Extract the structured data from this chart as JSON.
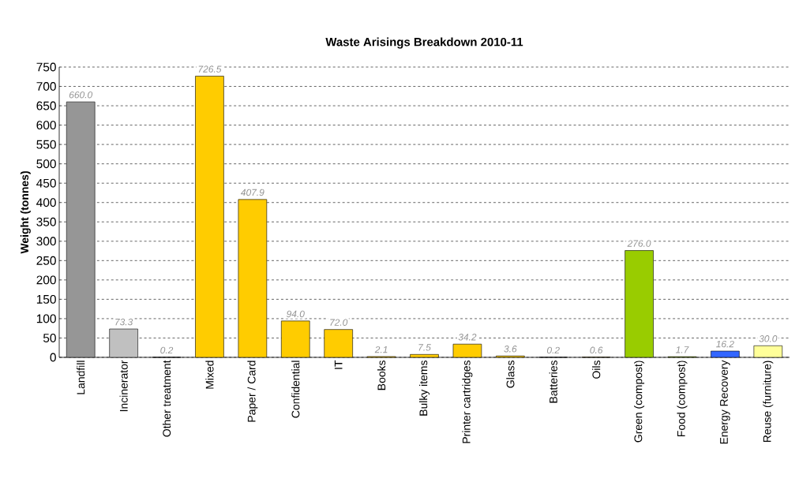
{
  "chart_data": {
    "type": "bar",
    "title": "Waste Arisings Breakdown 2010-11",
    "ylabel": "Weight (tonnes)",
    "categories": [
      "Landfill",
      "Incinerator",
      "Other treatment",
      "Mixed",
      "Paper / Card",
      "Confidential",
      "IT",
      "Books",
      "Bulky items",
      "Printer cartridges",
      "Glass",
      "Batteries",
      "Oils",
      "Green (compost)",
      "Food (compost)",
      "Energy Recovery",
      "Reuse (furniture)"
    ],
    "values": [
      660.0,
      73.3,
      0.2,
      726.5,
      407.9,
      94.0,
      72.0,
      2.1,
      7.5,
      34.2,
      3.6,
      0.2,
      0.6,
      276.0,
      1.7,
      16.2,
      30.0
    ],
    "value_labels": [
      "660.0",
      "73.3",
      "0.2",
      "726.5",
      "407.9",
      "94.0",
      "72.0",
      "2.1",
      "7.5",
      "34.2",
      "3.6",
      "0.2",
      "0.6",
      "276.0",
      "1.7",
      "16.2",
      "30.0"
    ],
    "colors": [
      "#969696",
      "#c0c0c0",
      "#c0c0c0",
      "#ffcc00",
      "#ffcc00",
      "#ffcc00",
      "#ffcc00",
      "#ffcc00",
      "#ffcc00",
      "#ffcc00",
      "#ffcc00",
      "#ffcc00",
      "#ffcc00",
      "#99cc00",
      "#99cc00",
      "#3366ff",
      "#ffff99"
    ],
    "ylim": [
      0,
      750
    ],
    "yticks": [
      0,
      50,
      100,
      150,
      200,
      250,
      300,
      350,
      400,
      450,
      500,
      550,
      600,
      650,
      700,
      750
    ],
    "grid": "y"
  }
}
